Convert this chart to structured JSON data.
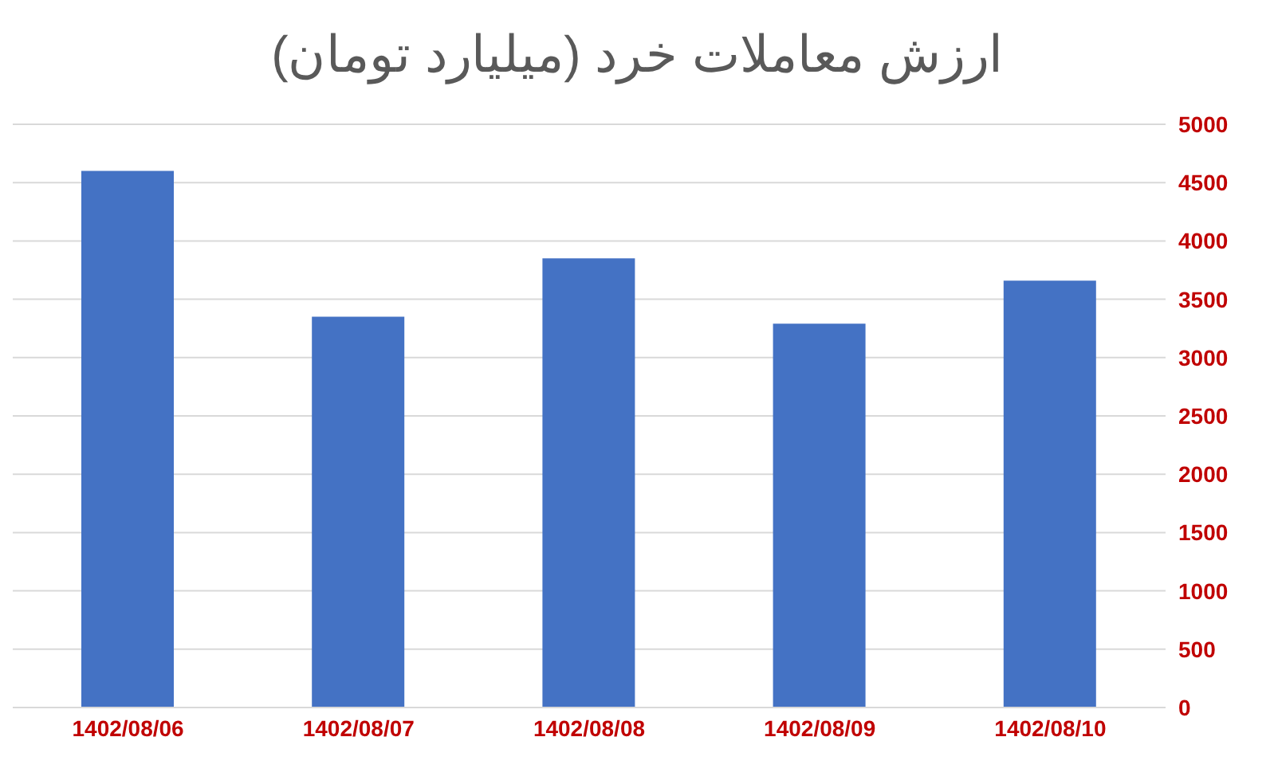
{
  "chart_data": {
    "type": "bar",
    "title": "ارزش معاملات خرد (میلیارد تومان)",
    "categories": [
      "1402/08/06",
      "1402/08/07",
      "1402/08/08",
      "1402/08/09",
      "1402/08/10"
    ],
    "values": [
      4600,
      3350,
      3850,
      3290,
      3660
    ],
    "color": "#4472c4",
    "ylim": [
      0,
      5000
    ],
    "yticks": [
      0,
      500,
      1000,
      1500,
      2000,
      2500,
      3000,
      3500,
      4000,
      4500,
      5000
    ],
    "grid": "y"
  }
}
